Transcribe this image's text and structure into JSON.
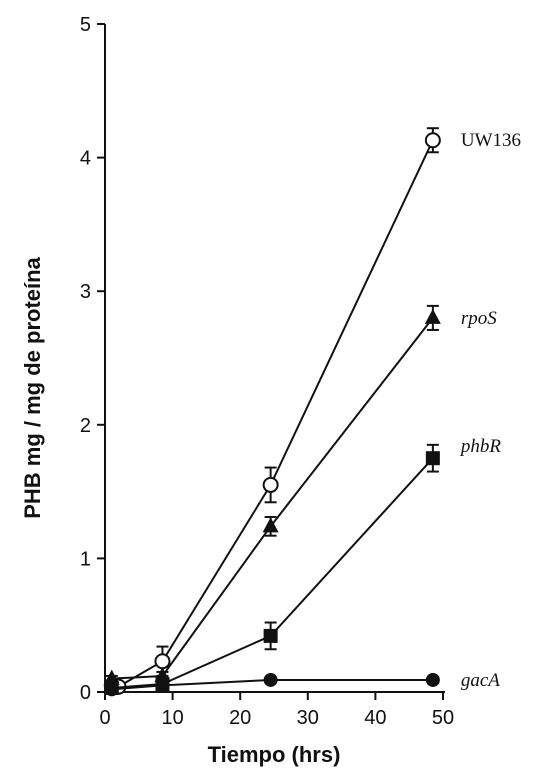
{
  "chart_data": {
    "type": "line",
    "title": "",
    "xlabel": "Tiempo (hrs)",
    "ylabel": "PHB mg / mg de proteína",
    "xlim": [
      0,
      50
    ],
    "ylim": [
      0,
      5
    ],
    "x_ticks": [
      "0",
      "10",
      "20",
      "30",
      "40",
      "50"
    ],
    "y_ticks": [
      "0",
      "1",
      "2",
      "3",
      "4",
      "5"
    ],
    "grid": false,
    "legend": "labels at line ends (right)",
    "series": [
      {
        "name": "UW136",
        "italic": false,
        "marker": "open-circle",
        "points": [
          {
            "x": 1,
            "y": 0.05,
            "err": 0.03
          },
          {
            "x": 2,
            "y": 0.04,
            "err": 0.03
          },
          {
            "x": 8.5,
            "y": 0.23,
            "err": 0.11
          },
          {
            "x": 24.5,
            "y": 1.55,
            "err": 0.13
          },
          {
            "x": 48.5,
            "y": 4.13,
            "err": 0.09
          }
        ]
      },
      {
        "name": "rpoS",
        "italic": true,
        "marker": "filled-triangle",
        "points": [
          {
            "x": 1,
            "y": 0.1,
            "err": 0.02
          },
          {
            "x": 8.5,
            "y": 0.12,
            "err": 0.03
          },
          {
            "x": 24.5,
            "y": 1.24,
            "err": 0.07
          },
          {
            "x": 48.5,
            "y": 2.8,
            "err": 0.09
          }
        ]
      },
      {
        "name": "phbR",
        "italic": true,
        "marker": "filled-square",
        "points": [
          {
            "x": 1,
            "y": 0.03,
            "err": 0.02
          },
          {
            "x": 8.5,
            "y": 0.06,
            "err": 0.03
          },
          {
            "x": 24.5,
            "y": 0.42,
            "err": 0.1
          },
          {
            "x": 48.5,
            "y": 1.75,
            "err": 0.1
          }
        ]
      },
      {
        "name": "gacA",
        "italic": true,
        "marker": "filled-circle",
        "points": [
          {
            "x": 1,
            "y": 0.02,
            "err": 0.02
          },
          {
            "x": 8.5,
            "y": 0.05,
            "err": 0.02
          },
          {
            "x": 24.5,
            "y": 0.09,
            "err": 0.01
          },
          {
            "x": 48.5,
            "y": 0.09,
            "err": 0.01
          }
        ]
      }
    ]
  }
}
